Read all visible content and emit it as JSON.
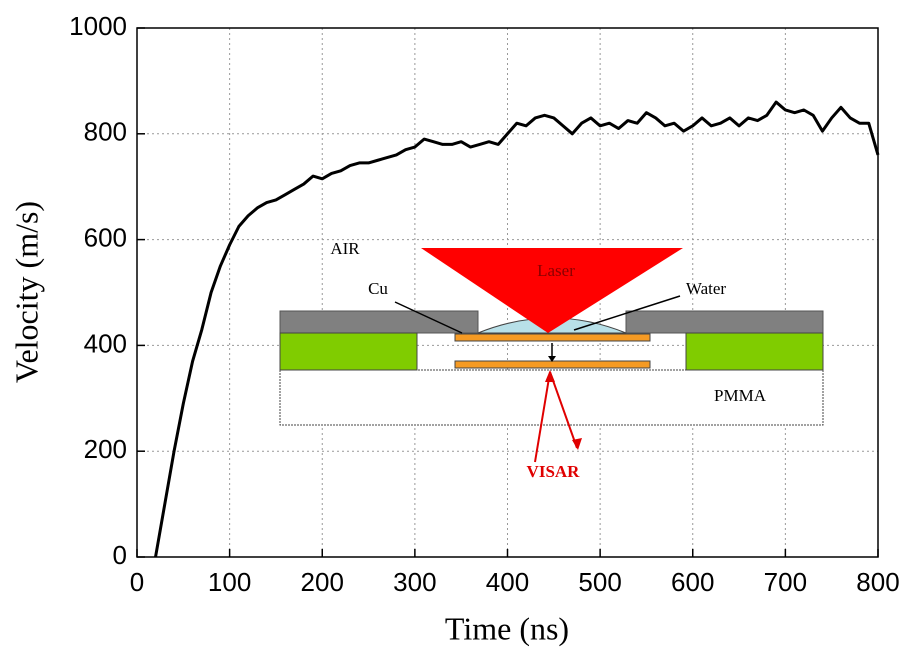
{
  "chart_data": {
    "type": "line",
    "x_label": "Time (ns)",
    "y_label": "Velocity (m/s)",
    "x": [
      20,
      30,
      40,
      50,
      60,
      70,
      80,
      90,
      100,
      110,
      120,
      130,
      140,
      150,
      160,
      170,
      180,
      190,
      200,
      210,
      220,
      230,
      240,
      250,
      260,
      270,
      280,
      290,
      300,
      310,
      320,
      330,
      340,
      350,
      360,
      370,
      380,
      390,
      400,
      410,
      420,
      430,
      440,
      450,
      460,
      470,
      480,
      490,
      500,
      510,
      520,
      530,
      540,
      550,
      560,
      570,
      580,
      590,
      600,
      610,
      620,
      630,
      640,
      650,
      660,
      670,
      680,
      690,
      700,
      710,
      720,
      730,
      740,
      750,
      760,
      770,
      780,
      790,
      800
    ],
    "values": [
      0,
      100,
      200,
      290,
      370,
      430,
      500,
      550,
      590,
      625,
      645,
      660,
      670,
      675,
      685,
      695,
      705,
      720,
      715,
      725,
      730,
      740,
      745,
      745,
      750,
      755,
      760,
      770,
      775,
      790,
      785,
      780,
      780,
      785,
      775,
      780,
      785,
      780,
      800,
      820,
      815,
      830,
      835,
      830,
      815,
      800,
      820,
      830,
      815,
      820,
      810,
      825,
      820,
      840,
      830,
      815,
      820,
      805,
      815,
      830,
      815,
      820,
      830,
      815,
      830,
      825,
      835,
      860,
      845,
      840,
      845,
      835,
      805,
      830,
      850,
      830,
      820,
      820,
      760
    ],
    "color": "#000000",
    "xlim": [
      0,
      800
    ],
    "ylim": [
      0,
      1000
    ],
    "xticks": [
      0,
      100,
      200,
      300,
      400,
      500,
      600,
      700,
      800
    ],
    "yticks": [
      0,
      200,
      400,
      600,
      800,
      1000
    ],
    "grid": true,
    "inset": {
      "air": "AIR",
      "laser": "Laser",
      "cu": "Cu",
      "water": "Water",
      "pmma": "PMMA",
      "visar": "VISAR"
    }
  }
}
